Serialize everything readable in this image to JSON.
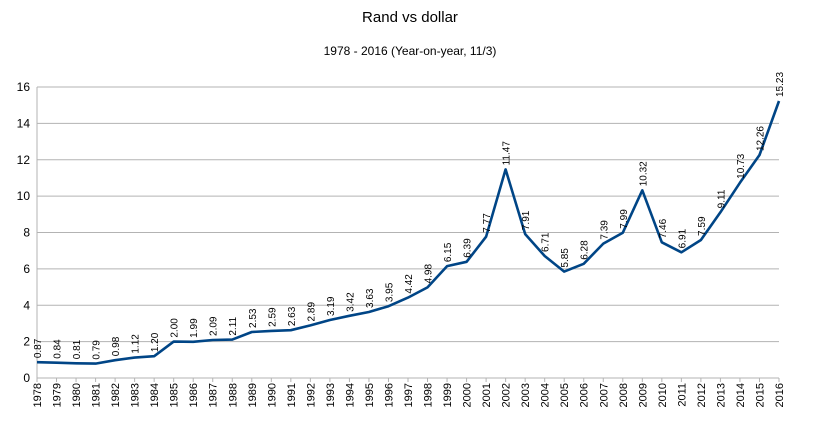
{
  "chart_data": {
    "type": "line",
    "title": "Rand vs dollar",
    "subtitle": "1978 - 2016 (Year-on-year, 11/3)",
    "xlabel": "",
    "ylabel": "",
    "x": [
      "1978",
      "1979",
      "1980",
      "1981",
      "1982",
      "1983",
      "1984",
      "1985",
      "1986",
      "1987",
      "1988",
      "1989",
      "1990",
      "1991",
      "1992",
      "1993",
      "1994",
      "1995",
      "1996",
      "1997",
      "1998",
      "1999",
      "2000",
      "2001",
      "2002",
      "2003",
      "2004",
      "2005",
      "2006",
      "2007",
      "2008",
      "2009",
      "2010",
      "2011",
      "2012",
      "2013",
      "2014",
      "2015",
      "2016"
    ],
    "series": [
      {
        "values": [
          0.87,
          0.84,
          0.81,
          0.79,
          0.98,
          1.12,
          1.2,
          2.0,
          1.99,
          2.09,
          2.11,
          2.53,
          2.59,
          2.63,
          2.89,
          3.19,
          3.42,
          3.63,
          3.95,
          4.42,
          4.98,
          6.15,
          6.39,
          7.77,
          11.47,
          7.91,
          6.71,
          5.85,
          6.28,
          7.39,
          7.99,
          10.32,
          7.46,
          6.91,
          7.59,
          9.11,
          10.73,
          12.26,
          15.23
        ],
        "labels": [
          "0.87",
          "0.84",
          "0.81",
          "0.79",
          "0.98",
          "1.12",
          "1.20",
          "2.00",
          "1.99",
          "2.09",
          "2.11",
          "2.53",
          "2.59",
          "2.63",
          "2.89",
          "3.19",
          "3.42",
          "3.63",
          "3.95",
          "4.42",
          "4.98",
          "6.15",
          "6.39",
          "7.77",
          "11.47",
          "7.91",
          "6.71",
          "5.85",
          "6.28",
          "7.39",
          "7.99",
          "10.32",
          "7.46",
          "6.91",
          "7.59",
          "9.11",
          "10.73",
          "12.26",
          "15.23"
        ],
        "color": "#004586"
      }
    ],
    "ylim": [
      0,
      16
    ],
    "yticks": [
      0,
      2,
      4,
      6,
      8,
      10,
      12,
      14,
      16
    ],
    "grid": true,
    "legend": "none"
  }
}
